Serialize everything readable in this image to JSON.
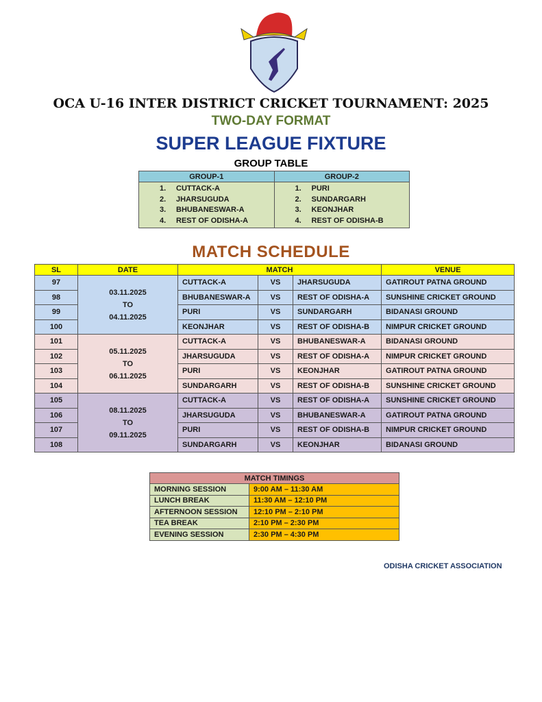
{
  "logo": {
    "text": "ODISHA CRICKET ASSOCIATION",
    "colors": {
      "bull": "#d42a2a",
      "scroll": "#f0d000",
      "shield": "#c9dcef",
      "batsman": "#3a2d7a"
    }
  },
  "header": {
    "title": "OCA U-16 INTER DISTRICT CRICKET TOURNAMENT: 2025",
    "format": "TWO-DAY FORMAT",
    "fixture": "SUPER LEAGUE FIXTURE",
    "group_table_title": "GROUP TABLE"
  },
  "groups": [
    {
      "name": "GROUP-1",
      "teams": [
        {
          "n": "1.",
          "t": "CUTTACK-A"
        },
        {
          "n": "2.",
          "t": "JHARSUGUDA"
        },
        {
          "n": "3.",
          "t": "BHUBANESWAR-A"
        },
        {
          "n": "4.",
          "t": "REST OF ODISHA-A"
        }
      ]
    },
    {
      "name": "GROUP-2",
      "teams": [
        {
          "n": "1.",
          "t": "PURI"
        },
        {
          "n": "2.",
          "t": "SUNDARGARH"
        },
        {
          "n": "3.",
          "t": "KEONJHAR"
        },
        {
          "n": "4.",
          "t": "REST OF ODISHA-B"
        }
      ]
    }
  ],
  "schedule": {
    "title": "MATCH SCHEDULE",
    "headers": {
      "sl": "SL",
      "date": "DATE",
      "match": "MATCH",
      "venue": "VENUE"
    },
    "blocks": [
      {
        "from": "03.11.2025",
        "to_label": "TO",
        "to": "04.11.2025",
        "matches": [
          {
            "sl": "97",
            "team1": "CUTTACK-A",
            "vs": "VS",
            "team2": "JHARSUGUDA",
            "venue": "GATIROUT PATNA GROUND"
          },
          {
            "sl": "98",
            "team1": "BHUBANESWAR-A",
            "vs": "VS",
            "team2": "REST OF ODISHA-A",
            "venue": "SUNSHINE CRICKET GROUND"
          },
          {
            "sl": "99",
            "team1": "PURI",
            "vs": "VS",
            "team2": "SUNDARGARH",
            "venue": "BIDANASI GROUND"
          },
          {
            "sl": "100",
            "team1": "KEONJHAR",
            "vs": "VS",
            "team2": "REST OF ODISHA-B",
            "venue": "NIMPUR CRICKET GROUND"
          }
        ]
      },
      {
        "from": "05.11.2025",
        "to_label": "TO",
        "to": "06.11.2025",
        "matches": [
          {
            "sl": "101",
            "team1": "CUTTACK-A",
            "vs": "VS",
            "team2": "BHUBANESWAR-A",
            "venue": "BIDANASI GROUND"
          },
          {
            "sl": "102",
            "team1": "JHARSUGUDA",
            "vs": "VS",
            "team2": "REST OF ODISHA-A",
            "venue": "NIMPUR CRICKET GROUND"
          },
          {
            "sl": "103",
            "team1": "PURI",
            "vs": "VS",
            "team2": "KEONJHAR",
            "venue": "GATIROUT PATNA GROUND"
          },
          {
            "sl": "104",
            "team1": "SUNDARGARH",
            "vs": "VS",
            "team2": "REST OF ODISHA-B",
            "venue": "SUNSHINE CRICKET GROUND"
          }
        ]
      },
      {
        "from": "08.11.2025",
        "to_label": "TO",
        "to": "09.11.2025",
        "matches": [
          {
            "sl": "105",
            "team1": "CUTTACK-A",
            "vs": "VS",
            "team2": "REST OF ODISHA-A",
            "venue": "SUNSHINE CRICKET GROUND"
          },
          {
            "sl": "106",
            "team1": "JHARSUGUDA",
            "vs": "VS",
            "team2": "BHUBANESWAR-A",
            "venue": "GATIROUT PATNA GROUND"
          },
          {
            "sl": "107",
            "team1": "PURI",
            "vs": "VS",
            "team2": "REST OF ODISHA-B",
            "venue": "NIMPUR CRICKET GROUND"
          },
          {
            "sl": "108",
            "team1": "SUNDARGARH",
            "vs": "VS",
            "team2": "KEONJHAR",
            "venue": "BIDANASI GROUND"
          }
        ]
      }
    ]
  },
  "timings": {
    "title": "MATCH TIMINGS",
    "rows": [
      {
        "session": "MORNING SESSION",
        "time": "9:00 AM – 11:30 AM"
      },
      {
        "session": "LUNCH BREAK",
        "time": "11:30 AM – 12:10 PM"
      },
      {
        "session": "AFTERNOON SESSION",
        "time": "12:10 PM – 2:10 PM"
      },
      {
        "session": "TEA BREAK",
        "time": "2:10 PM – 2:30 PM"
      },
      {
        "session": "EVENING SESSION",
        "time": "2:30 PM – 4:30 PM"
      }
    ]
  },
  "footer": {
    "org": "ODISHA CRICKET ASSOCIATION"
  }
}
